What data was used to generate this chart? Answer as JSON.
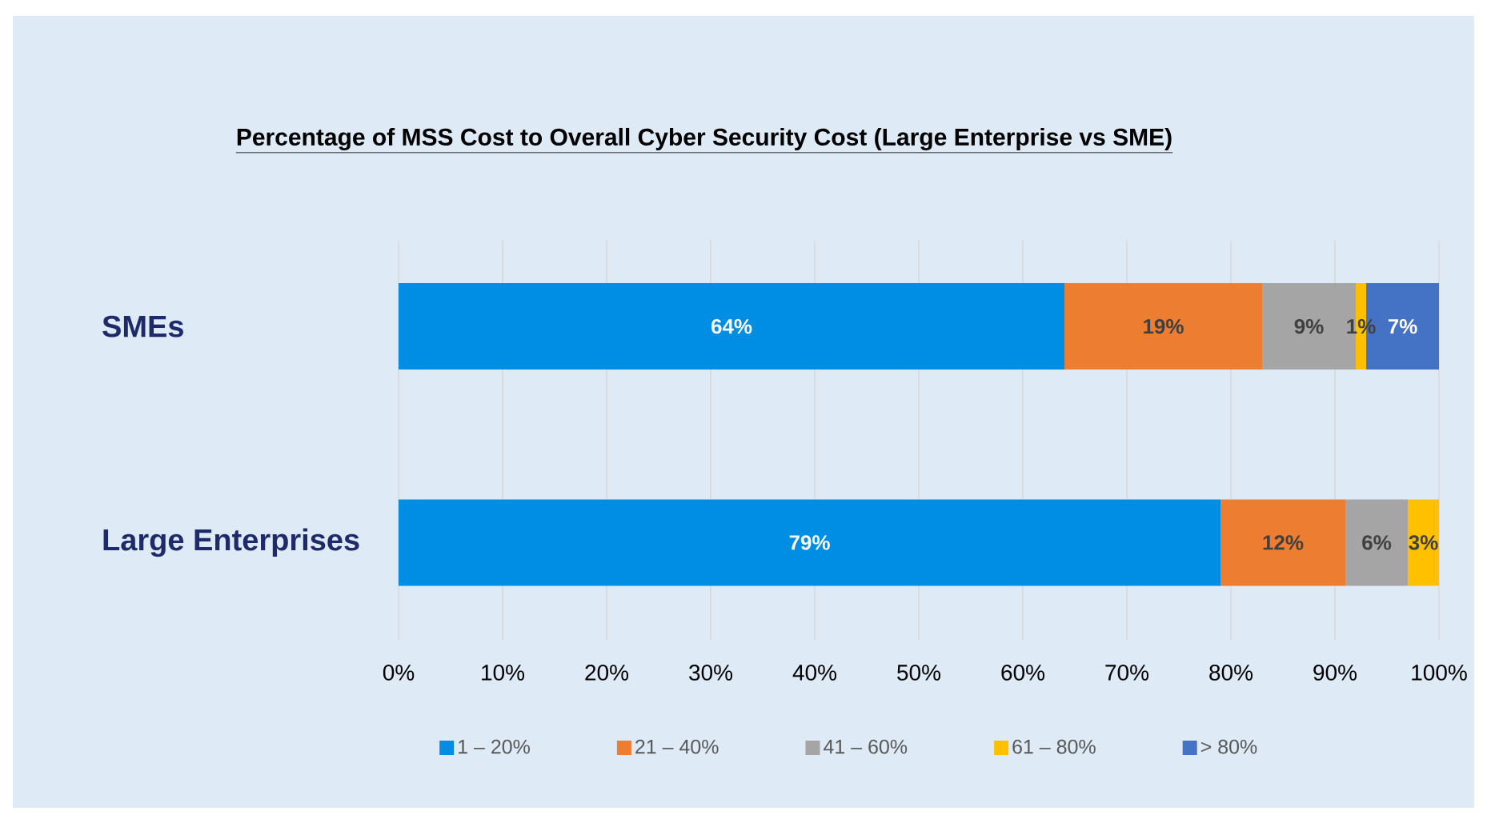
{
  "chart_data": {
    "type": "bar",
    "orientation": "horizontal",
    "stacked": true,
    "title": "Percentage of MSS Cost to Overall Cyber Security Cost (Large Enterprise vs SME)",
    "categories": [
      "SMEs",
      "Large Enterprises"
    ],
    "series": [
      {
        "name": "1 – 20%",
        "color": "#008ee5",
        "values": [
          64,
          79
        ],
        "value_labels": [
          "64%",
          "79%"
        ]
      },
      {
        "name": "21 – 40%",
        "color": "#ed7d31",
        "values": [
          19,
          12
        ],
        "value_labels": [
          "19%",
          "12%"
        ]
      },
      {
        "name": "41 – 60%",
        "color": "#a5a5a5",
        "values": [
          9,
          6
        ],
        "value_labels": [
          "9%",
          "6%"
        ]
      },
      {
        "name": "61 – 80%",
        "color": "#ffc000",
        "values": [
          1,
          3
        ],
        "value_labels": [
          "1%",
          "3%"
        ]
      },
      {
        "name": "> 80%",
        "color": "#4472c4",
        "values": [
          7,
          null
        ],
        "value_labels": [
          "7%",
          null
        ]
      }
    ],
    "xlim": [
      0,
      100
    ],
    "xticks": [
      {
        "value": 0,
        "label": "0%"
      },
      {
        "value": 10,
        "label": "10%"
      },
      {
        "value": 20,
        "label": "20%"
      },
      {
        "value": 30,
        "label": "30%"
      },
      {
        "value": 40,
        "label": "40%"
      },
      {
        "value": 50,
        "label": "50%"
      },
      {
        "value": 60,
        "label": "60%"
      },
      {
        "value": 70,
        "label": "70%"
      },
      {
        "value": 80,
        "label": "80%"
      },
      {
        "value": 90,
        "label": "90%"
      },
      {
        "value": 100,
        "label": "100%"
      }
    ],
    "grid": "x",
    "legend": "bottom"
  }
}
